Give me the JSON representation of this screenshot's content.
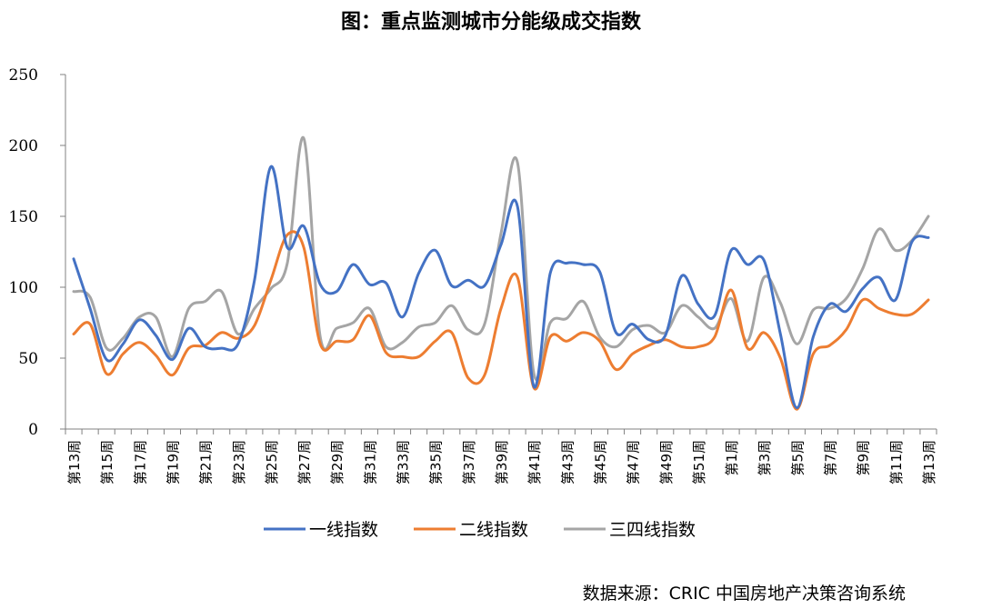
{
  "chart_data": {
    "type": "line",
    "title": "图：重点监测城市分能级成交指数",
    "source": "数据来源：CRIC 中国房地产决策咨询系统",
    "xlabel": "",
    "ylabel": "",
    "ylim": [
      0,
      250
    ],
    "yticks": [
      0,
      50,
      100,
      150,
      200,
      250
    ],
    "grid": false,
    "legend": "bottom",
    "x": [
      "第13周",
      "第14周",
      "第15周",
      "第16周",
      "第17周",
      "第18周",
      "第19周",
      "第20周",
      "第21周",
      "第22周",
      "第23周",
      "第24周",
      "第25周",
      "第26周",
      "第27周",
      "第28周",
      "第29周",
      "第30周",
      "第31周",
      "第32周",
      "第33周",
      "第34周",
      "第35周",
      "第36周",
      "第37周",
      "第38周",
      "第39周",
      "第40周",
      "第41周",
      "第42周",
      "第43周",
      "第44周",
      "第45周",
      "第46周",
      "第47周",
      "第48周",
      "第49周",
      "第50周",
      "第51周",
      "第52周",
      "第1周",
      "第2周",
      "第3周",
      "第4周",
      "第5周",
      "第6周",
      "第7周",
      "第8周",
      "第9周",
      "第10周",
      "第11周",
      "第12周",
      "第13周"
    ],
    "xtick_labels": [
      "第13周",
      "第15周",
      "第17周",
      "第19周",
      "第21周",
      "第23周",
      "第25周",
      "第27周",
      "第29周",
      "第31周",
      "第33周",
      "第35周",
      "第37周",
      "第39周",
      "第41周",
      "第43周",
      "第45周",
      "第47周",
      "第49周",
      "第51周",
      "第1周",
      "第3周",
      "第5周",
      "第7周",
      "第9周",
      "第11周",
      "第13周"
    ],
    "series": [
      {
        "name": "一线指数",
        "color": "#4472C4",
        "values": [
          120,
          85,
          49,
          60,
          77,
          66,
          49,
          71,
          58,
          57,
          60,
          105,
          185,
          128,
          143,
          102,
          97,
          116,
          102,
          103,
          79,
          110,
          126,
          101,
          105,
          101,
          130,
          157,
          30,
          110,
          117,
          116,
          111,
          68,
          74,
          63,
          66,
          108,
          88,
          80,
          126,
          116,
          119,
          67,
          15,
          65,
          88,
          83,
          99,
          107,
          91,
          132,
          135
        ]
      },
      {
        "name": "二线指数",
        "color": "#ED7D31",
        "values": [
          67,
          74,
          39,
          53,
          61,
          52,
          38,
          57,
          59,
          68,
          64,
          73,
          105,
          137,
          128,
          60,
          62,
          63,
          80,
          54,
          51,
          51,
          62,
          68,
          36,
          38,
          85,
          107,
          29,
          65,
          62,
          68,
          62,
          42,
          53,
          59,
          63,
          58,
          58,
          65,
          98,
          57,
          68,
          50,
          14,
          53,
          59,
          70,
          91,
          85,
          81,
          81,
          91
        ]
      },
      {
        "name": "三四线指数",
        "color": "#A5A5A5",
        "values": [
          97,
          93,
          57,
          64,
          79,
          79,
          51,
          85,
          90,
          97,
          67,
          85,
          99,
          117,
          205,
          65,
          71,
          75,
          85,
          58,
          61,
          72,
          75,
          87,
          70,
          74,
          138,
          188,
          39,
          75,
          78,
          90,
          65,
          58,
          70,
          73,
          68,
          87,
          79,
          71,
          92,
          62,
          107,
          89,
          60,
          84,
          85,
          92,
          113,
          141,
          126,
          133,
          150
        ]
      }
    ]
  }
}
